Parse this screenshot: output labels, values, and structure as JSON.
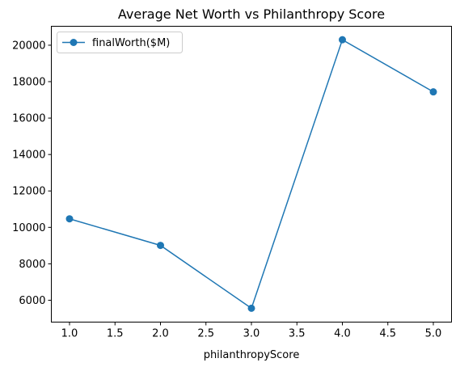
{
  "chart_data": {
    "type": "line",
    "title": "Average Net Worth vs Philanthropy Score",
    "xlabel": "philanthropyScore",
    "ylabel": "",
    "x": [
      1.0,
      2.0,
      3.0,
      4.0,
      5.0
    ],
    "series": [
      {
        "name": "finalWorth($M)",
        "values": [
          10470,
          9010,
          5560,
          20300,
          17440
        ],
        "color": "#1f77b4",
        "marker": "circle"
      }
    ],
    "xlim": [
      0.8,
      5.2
    ],
    "ylim": [
      4800,
      21040
    ],
    "xticks": [
      1.0,
      1.5,
      2.0,
      2.5,
      3.0,
      3.5,
      4.0,
      4.5,
      5.0
    ],
    "xtick_labels": [
      "1.0",
      "1.5",
      "2.0",
      "2.5",
      "3.0",
      "3.5",
      "4.0",
      "4.5",
      "5.0"
    ],
    "yticks": [
      6000,
      8000,
      10000,
      12000,
      14000,
      16000,
      18000,
      20000
    ],
    "ytick_labels": [
      "6000",
      "8000",
      "10000",
      "12000",
      "14000",
      "16000",
      "18000",
      "20000"
    ],
    "grid": false,
    "legend": {
      "placement": "top-left"
    }
  }
}
